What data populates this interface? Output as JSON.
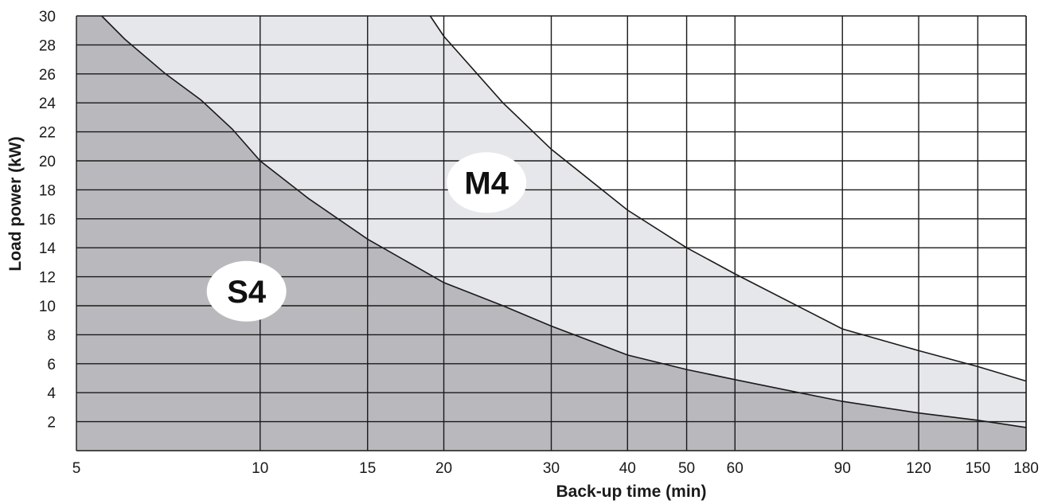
{
  "chart_data": {
    "type": "area",
    "title": "",
    "xlabel": "Back-up time (min)",
    "ylabel": "Load power (kW)",
    "xscale": "log",
    "xlim": [
      5,
      180
    ],
    "ylim": [
      0,
      30
    ],
    "x_ticks": [
      5,
      10,
      15,
      20,
      30,
      40,
      50,
      60,
      90,
      120,
      150,
      180
    ],
    "y_ticks": [
      2,
      4,
      6,
      8,
      10,
      12,
      14,
      16,
      18,
      20,
      22,
      24,
      26,
      28,
      30
    ],
    "grid": true,
    "legend": "none",
    "series": [
      {
        "name": "S4",
        "color": "#b9b9bd",
        "x": [
          5.5,
          6,
          7,
          8,
          9,
          10,
          12,
          15,
          20,
          25,
          30,
          40,
          50,
          60,
          90,
          120,
          150,
          180
        ],
        "y": [
          30,
          28.4,
          26,
          24.2,
          22.2,
          20,
          17.4,
          14.6,
          11.6,
          10,
          8.6,
          6.6,
          5.6,
          4.9,
          3.4,
          2.6,
          2.1,
          1.6
        ]
      },
      {
        "name": "M4",
        "color": "#e6e7ea",
        "x": [
          19,
          20,
          25,
          30,
          40,
          50,
          60,
          90,
          120,
          150,
          180
        ],
        "y": [
          30,
          28.6,
          24,
          20.8,
          16.6,
          14,
          12.2,
          8.4,
          6.9,
          5.8,
          4.8
        ]
      }
    ],
    "annotations": [
      {
        "text": "S4",
        "x": 9.5,
        "y": 11
      },
      {
        "text": "M4",
        "x": 23.5,
        "y": 18.5
      }
    ]
  }
}
